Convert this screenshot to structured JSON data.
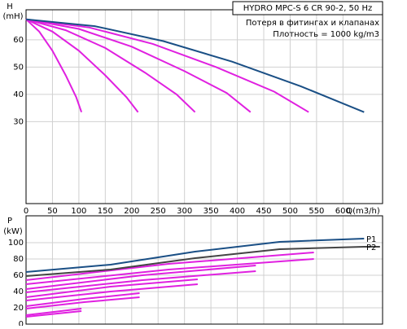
{
  "chart_data": [
    {
      "type": "line",
      "title": "HYDRO MPC-S 6 CR 90-2, 50 Hz",
      "annotations": [
        "Потеря в фитингах и клапанах",
        "Плотность = 1000 kg/m3"
      ],
      "ylabel": "H",
      "yunit": "(mH)",
      "xlabel": "Q(m3/h)",
      "xlim": [
        0,
        675
      ],
      "ylim": [
        0,
        71
      ],
      "xticks": [
        0,
        50,
        100,
        150,
        200,
        250,
        300,
        350,
        400,
        450,
        500,
        550,
        600
      ],
      "yticks": [
        30,
        40,
        50,
        60
      ],
      "grid": true,
      "series": [
        {
          "color": "#e020e0",
          "x": [
            0,
            25,
            50,
            75,
            95,
            105
          ],
          "values": [
            67.5,
            63,
            56,
            47,
            39,
            33.5
          ]
        },
        {
          "color": "#e020e0",
          "x": [
            0,
            50,
            100,
            150,
            190,
            212
          ],
          "values": [
            67.5,
            63,
            56,
            47,
            39,
            33.5
          ]
        },
        {
          "color": "#e020e0",
          "x": [
            0,
            75,
            150,
            225,
            285,
            320
          ],
          "values": [
            67.5,
            63.5,
            57,
            48,
            40,
            33.5
          ]
        },
        {
          "color": "#e020e0",
          "x": [
            0,
            100,
            200,
            300,
            380,
            425
          ],
          "values": [
            67.5,
            64,
            57.5,
            48.5,
            40.5,
            33.5
          ]
        },
        {
          "color": "#e020e0",
          "x": [
            0,
            120,
            240,
            360,
            470,
            535
          ],
          "values": [
            67.5,
            64.5,
            58.5,
            50,
            41,
            33.5
          ]
        },
        {
          "color": "#1a4f85",
          "x": [
            0,
            130,
            260,
            390,
            520,
            640
          ],
          "values": [
            67.5,
            65,
            59.5,
            52,
            43,
            33.5
          ]
        }
      ]
    },
    {
      "type": "line",
      "ylabel": "P",
      "yunit": "(kW)",
      "xlim": [
        0,
        675
      ],
      "ylim": [
        0,
        133
      ],
      "xticks": [
        0,
        50,
        100,
        150,
        200,
        250,
        300,
        350,
        400,
        450,
        500,
        550,
        600
      ],
      "yticks": [
        0,
        20,
        40,
        60,
        80,
        100
      ],
      "grid": true,
      "series": [
        {
          "color": "#e020e0",
          "x": [
            0,
            105
          ],
          "values": [
            11,
            19
          ]
        },
        {
          "color": "#e020e0",
          "x": [
            0,
            105
          ],
          "values": [
            9,
            16
          ]
        },
        {
          "color": "#e020e0",
          "x": [
            0,
            110,
            215
          ],
          "values": [
            22,
            31,
            38
          ]
        },
        {
          "color": "#e020e0",
          "x": [
            0,
            110,
            215
          ],
          "values": [
            19,
            27,
            33
          ]
        },
        {
          "color": "#e020e0",
          "x": [
            0,
            160,
            325
          ],
          "values": [
            33,
            46,
            55
          ]
        },
        {
          "color": "#e020e0",
          "x": [
            0,
            160,
            325
          ],
          "values": [
            29,
            40,
            49
          ]
        },
        {
          "color": "#e020e0",
          "x": [
            0,
            220,
            435
          ],
          "values": [
            43,
            60,
            72
          ]
        },
        {
          "color": "#e020e0",
          "x": [
            0,
            220,
            435
          ],
          "values": [
            39,
            54,
            65
          ]
        },
        {
          "color": "#e020e0",
          "x": [
            0,
            270,
            545
          ],
          "values": [
            54,
            74,
            88
          ]
        },
        {
          "color": "#e020e0",
          "x": [
            0,
            270,
            545
          ],
          "values": [
            49,
            67,
            80
          ]
        },
        {
          "name": "P1",
          "color": "#1a4f85",
          "x": [
            0,
            160,
            320,
            480,
            640
          ],
          "values": [
            64,
            73,
            89,
            101,
            105
          ]
        },
        {
          "name": "P2",
          "color": "#444444",
          "x": [
            0,
            160,
            320,
            480,
            640,
            670
          ],
          "values": [
            59,
            67,
            81,
            92,
            95,
            95
          ]
        }
      ]
    }
  ]
}
